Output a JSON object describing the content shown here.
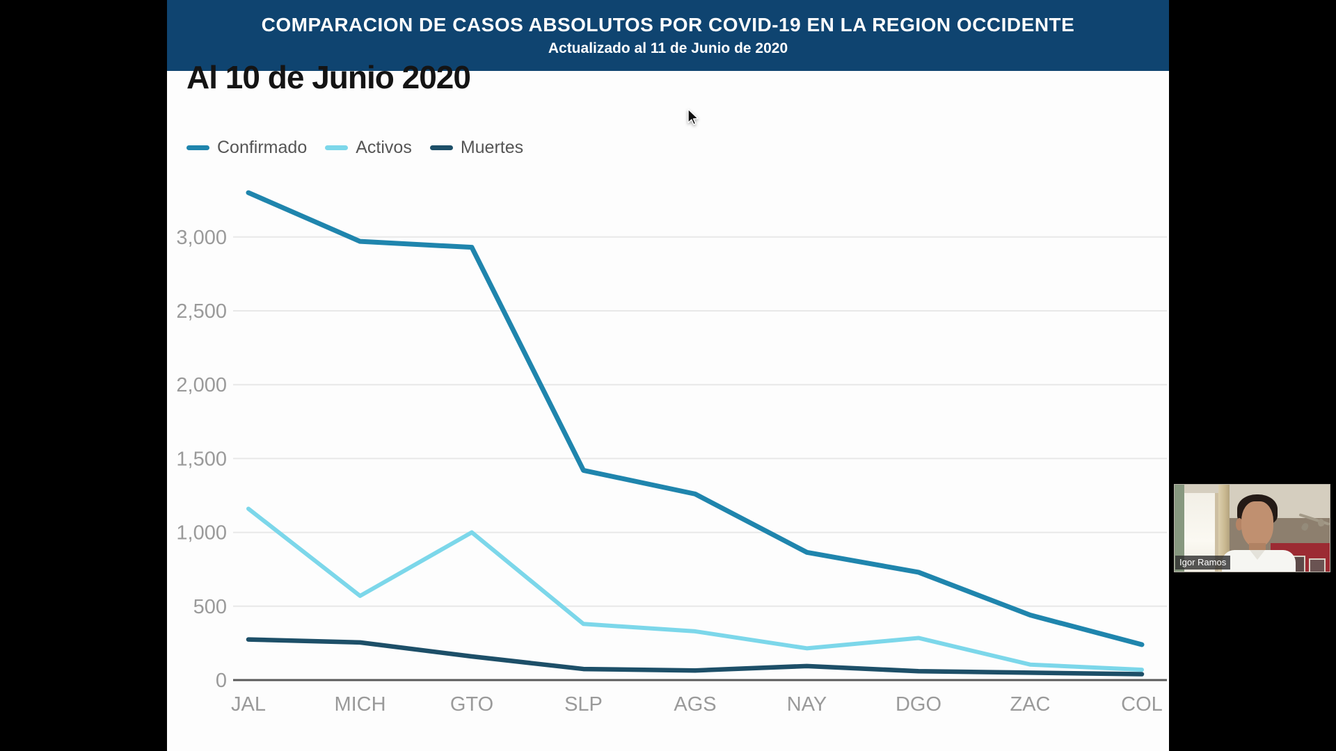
{
  "header": {
    "title": "COMPARACION DE CASOS ABSOLUTOS POR COVID-19 EN LA REGION OCCIDENTE",
    "subtitle": "Actualizado al 11 de Junio de 2020",
    "background": "#0f4470"
  },
  "chart_data": {
    "type": "line",
    "title": "Al 10 de Junio 2020",
    "categories": [
      "JAL",
      "MICH",
      "GTO",
      "SLP",
      "AGS",
      "NAY",
      "DGO",
      "ZAC",
      "COL"
    ],
    "series": [
      {
        "name": "Confirmado",
        "color": "#1f85ad",
        "values": [
          3300,
          2970,
          2930,
          1420,
          1260,
          865,
          730,
          440,
          240
        ]
      },
      {
        "name": "Activos",
        "color": "#7cd7ea",
        "values": [
          1160,
          570,
          1000,
          380,
          330,
          215,
          285,
          105,
          70
        ]
      },
      {
        "name": "Muertes",
        "color": "#1d4f68",
        "values": [
          275,
          255,
          160,
          75,
          65,
          95,
          60,
          50,
          40
        ]
      }
    ],
    "y_ticks": [
      {
        "value": 0,
        "label": "0"
      },
      {
        "value": 500,
        "label": "500"
      },
      {
        "value": 1000,
        "label": "1,000"
      },
      {
        "value": 1500,
        "label": "1,500"
      },
      {
        "value": 2000,
        "label": "2,000"
      },
      {
        "value": 2500,
        "label": "2,500"
      },
      {
        "value": 3000,
        "label": "3,000"
      }
    ],
    "ylim": [
      0,
      3320
    ],
    "grid": "horizontal",
    "legend_position": "top-left",
    "xlabel": "",
    "ylabel": ""
  },
  "webcam": {
    "name_label": "Igor Ramos"
  },
  "colors": {
    "grid_line": "#e8e8e8",
    "axis_line": "#5a5a5a",
    "tick_label": "#9a9a9a",
    "legend_text": "#555555"
  }
}
